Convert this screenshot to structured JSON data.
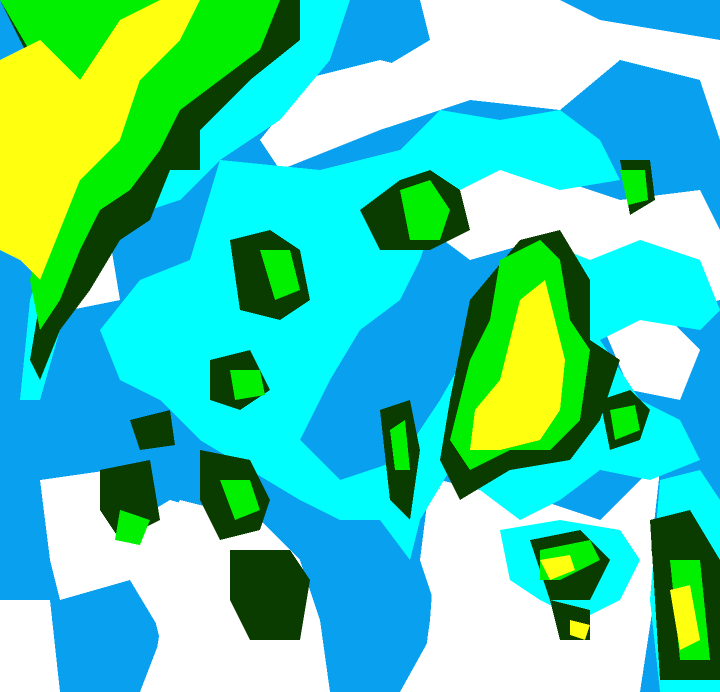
{
  "map": {
    "type": "radar-intensity-raster",
    "legend_shown": false,
    "colors": {
      "none": "#ffffff",
      "level1": "#0aa0f0",
      "level2": "#00ffff",
      "level3": "#0a3c00",
      "level4": "#00f000",
      "level5": "#ffff10"
    }
  }
}
